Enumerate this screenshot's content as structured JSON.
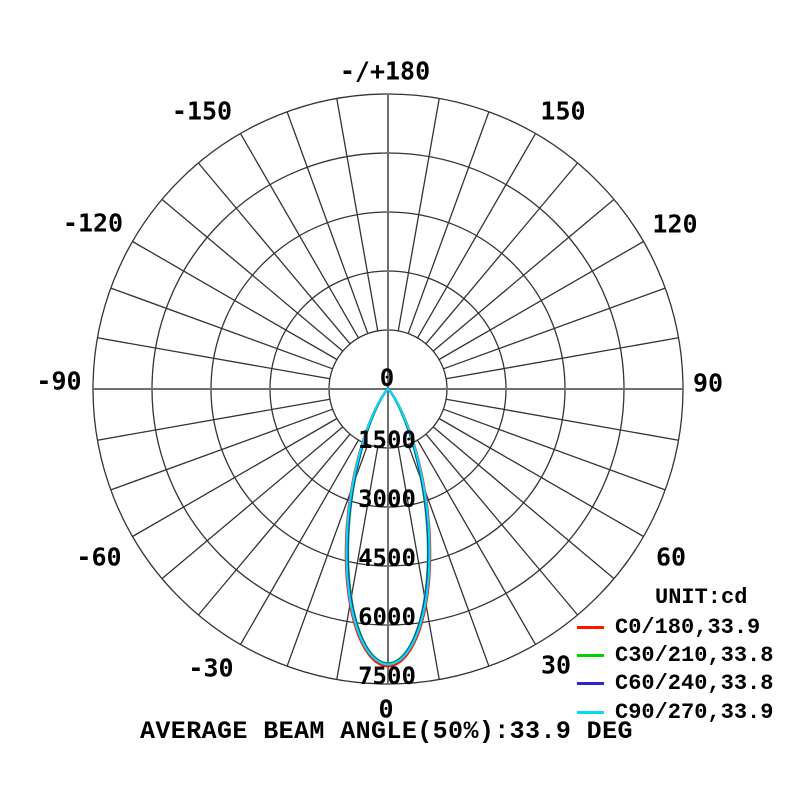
{
  "chart_data": {
    "type": "line",
    "variant": "polar-luminous-intensity-distribution",
    "title": "",
    "unit_label": "UNIT:cd",
    "footer": "AVERAGE BEAM ANGLE(50%):33.9 DEG",
    "average_beam_angle_50pct_deg": 33.9,
    "r_max": 7500,
    "spoke_step_deg": 10,
    "grid": true,
    "legend_position": "bottom-right",
    "angle_ticks": [
      {
        "angle": 180,
        "label": "-/+180"
      },
      {
        "angle": -150,
        "label": "-150"
      },
      {
        "angle": 150,
        "label": "150"
      },
      {
        "angle": -120,
        "label": "-120"
      },
      {
        "angle": 120,
        "label": "120"
      },
      {
        "angle": -90,
        "label": "-90"
      },
      {
        "angle": 90,
        "label": "90"
      },
      {
        "angle": -60,
        "label": "-60"
      },
      {
        "angle": 60,
        "label": "60"
      },
      {
        "angle": -30,
        "label": "-30"
      },
      {
        "angle": 30,
        "label": "30"
      },
      {
        "angle": 0,
        "label": "0"
      }
    ],
    "radial_ticks": [
      {
        "value": 0,
        "label": "0"
      },
      {
        "value": 1500,
        "label": "1500"
      },
      {
        "value": 3000,
        "label": "3000"
      },
      {
        "value": 4500,
        "label": "4500"
      },
      {
        "value": 6000,
        "label": "6000"
      },
      {
        "value": 7500,
        "label": "7500"
      }
    ],
    "series": [
      {
        "name": "C0/180,33.9",
        "plane": "C0/180",
        "beam_angle_deg": 33.9,
        "peak_cd": 7050,
        "color": "#ff1400"
      },
      {
        "name": "C30/210,33.8",
        "plane": "C30/210",
        "beam_angle_deg": 33.8,
        "peak_cd": 6970,
        "color": "#00d300"
      },
      {
        "name": "C60/240,33.8",
        "plane": "C60/240",
        "beam_angle_deg": 33.8,
        "peak_cd": 6985,
        "color": "#2626d8"
      },
      {
        "name": "C90/270,33.9",
        "plane": "C90/270",
        "beam_angle_deg": 33.9,
        "peak_cd": 7000,
        "color": "#00dcf2"
      }
    ]
  }
}
